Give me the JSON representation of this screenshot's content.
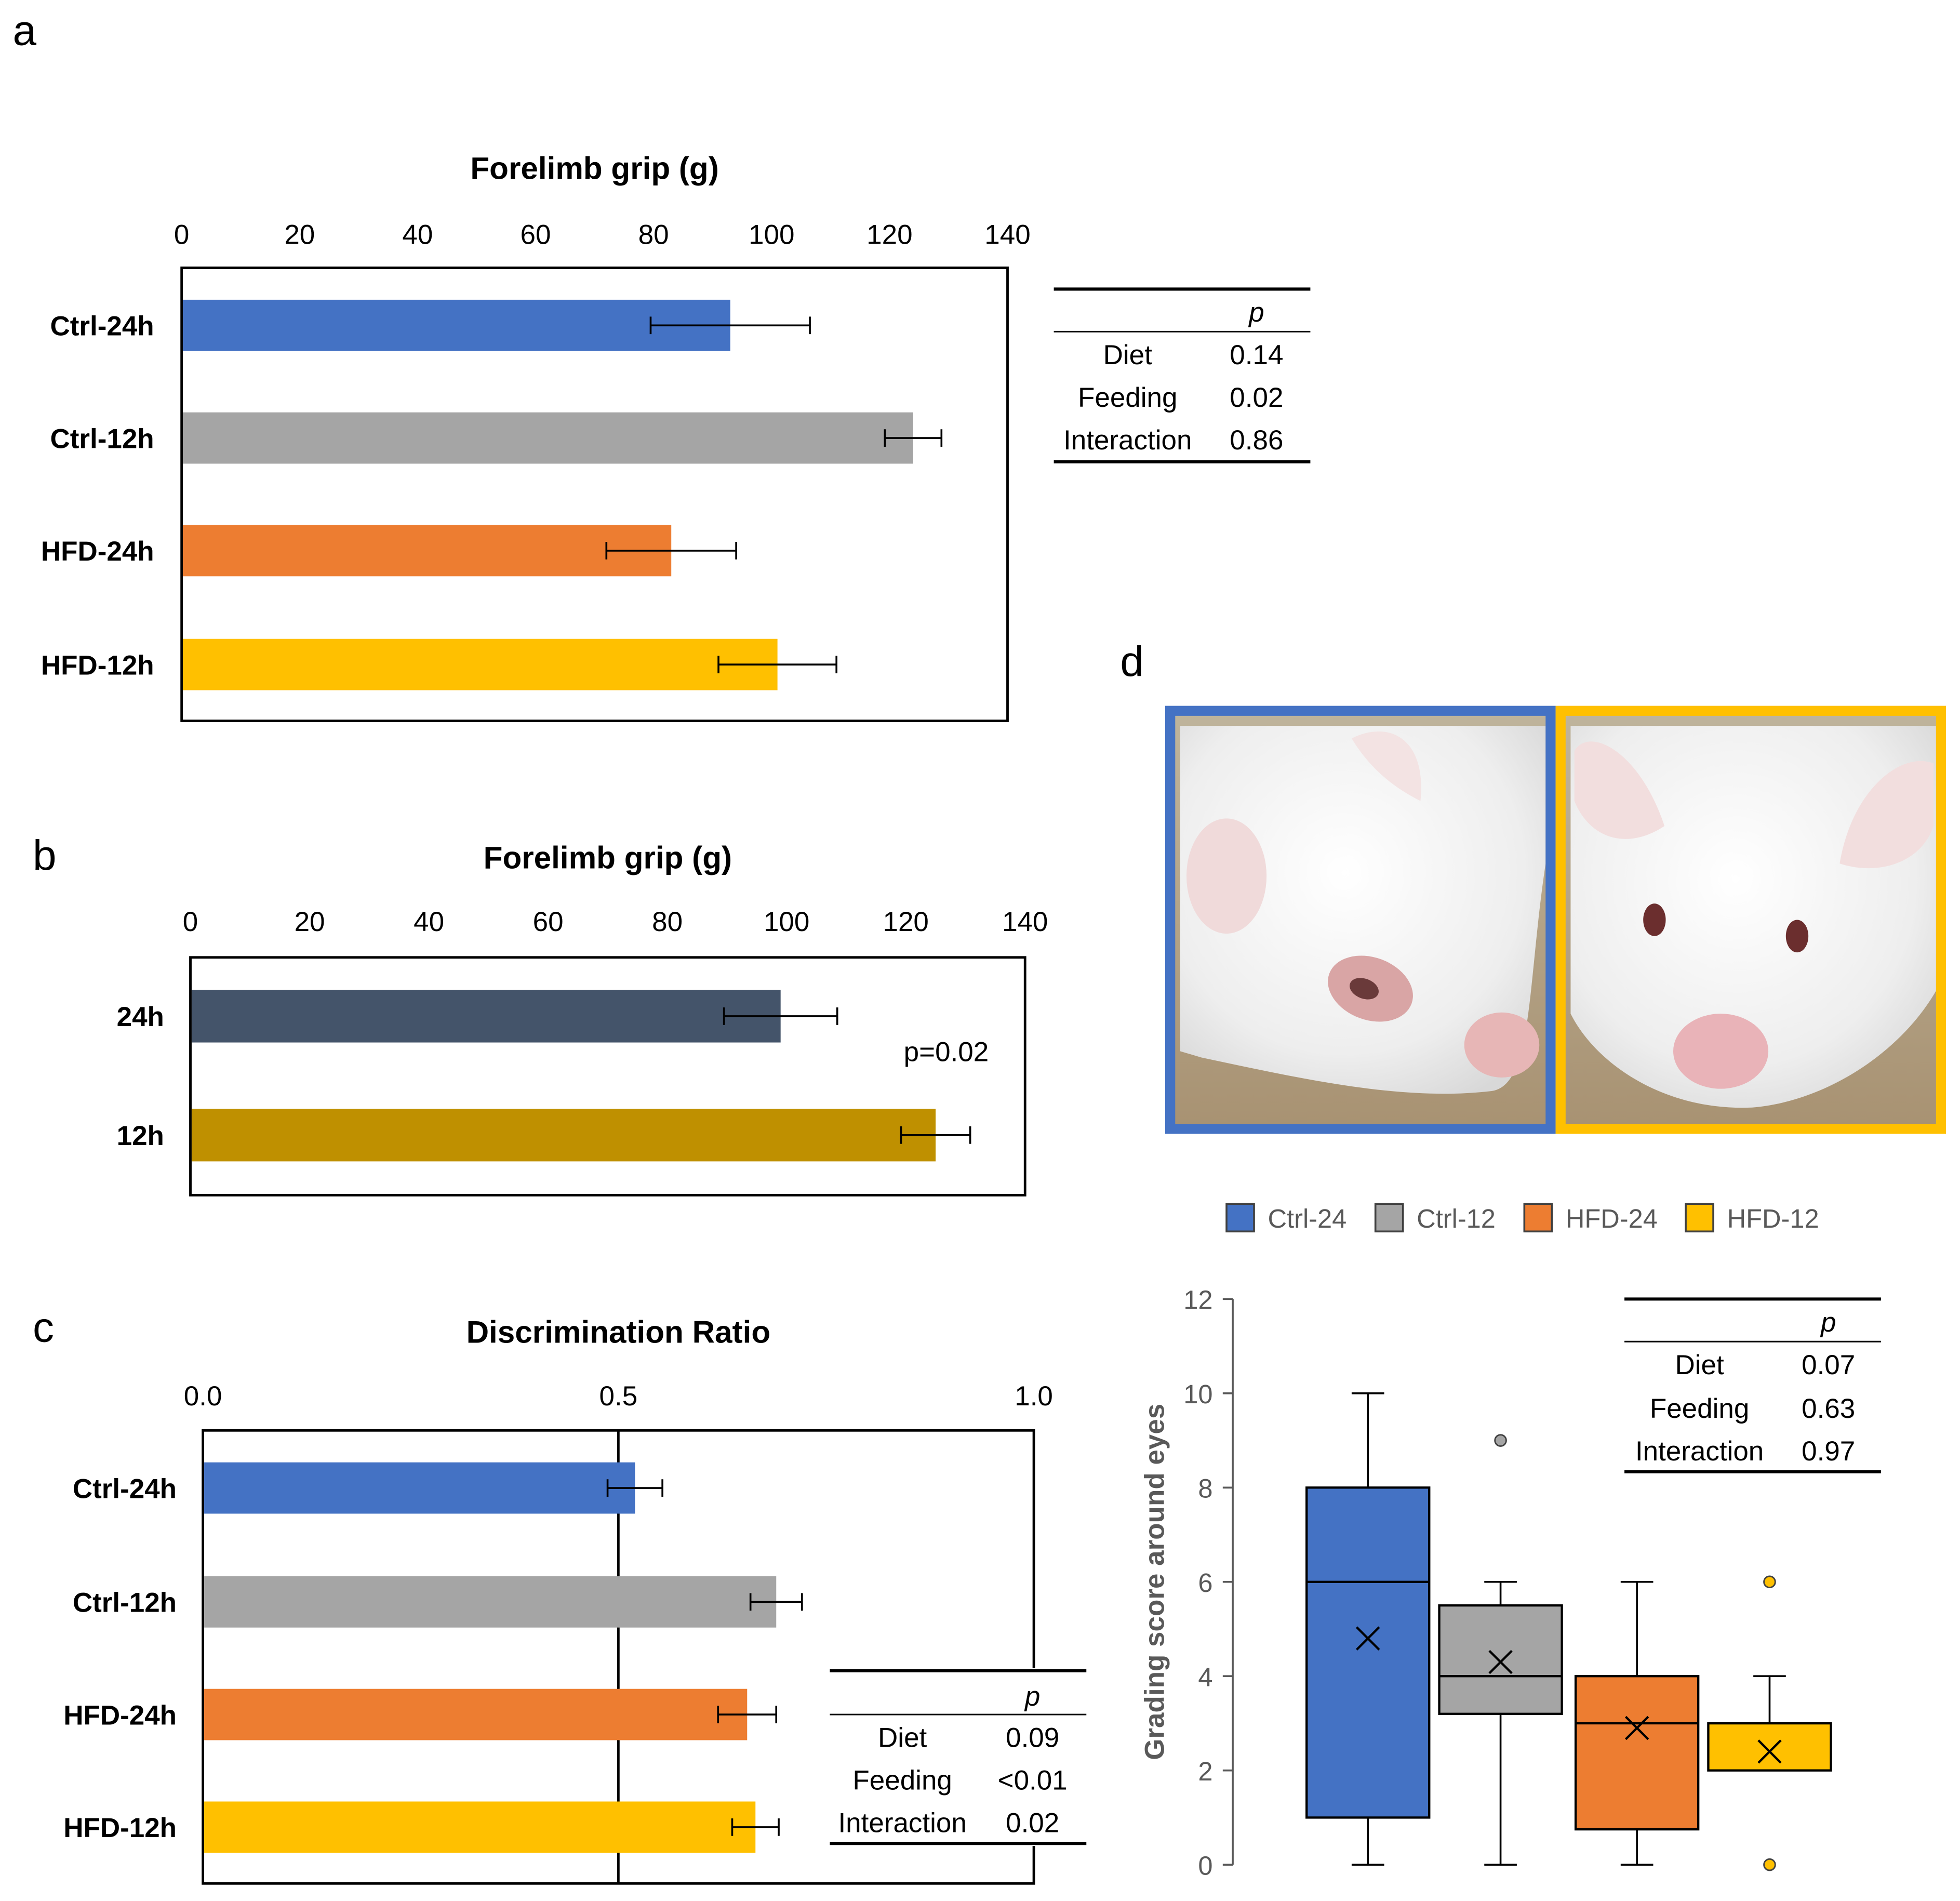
{
  "colors": {
    "ctrl24": "#4472C4",
    "ctrl12": "#A5A5A5",
    "hfd24": "#ED7D31",
    "hfd12": "#FFC000",
    "h24": "#44546A",
    "h12": "#BF9000"
  },
  "panel_labels": {
    "a": "a",
    "b": "b",
    "c": "c",
    "d": "d"
  },
  "chart_data": [
    {
      "id": "a",
      "type": "bar",
      "orientation": "horizontal",
      "title": "Forelimb grip (g)",
      "xlim": [
        0,
        140
      ],
      "ticks": [
        0,
        20,
        40,
        60,
        80,
        100,
        120,
        140
      ],
      "tick_labels": [
        "0",
        "20",
        "40",
        "60",
        "80",
        "100",
        "120",
        "140"
      ],
      "categories": [
        "Ctrl-24h",
        "Ctrl-12h",
        "HFD-24h",
        "HFD-12h"
      ],
      "values": [
        93,
        124,
        83,
        101
      ],
      "errors": [
        13.5,
        4.8,
        11,
        10
      ],
      "color_keys": [
        "ctrl24",
        "ctrl12",
        "hfd24",
        "hfd12"
      ],
      "stats": {
        "header": "p",
        "rows": [
          [
            "Diet",
            "0.14"
          ],
          [
            "Feeding",
            "0.02"
          ],
          [
            "Interaction",
            "0.86"
          ]
        ]
      }
    },
    {
      "id": "b",
      "type": "bar",
      "orientation": "horizontal",
      "title": "Forelimb grip (g)",
      "xlim": [
        0,
        140
      ],
      "ticks": [
        0,
        20,
        40,
        60,
        80,
        100,
        120,
        140
      ],
      "tick_labels": [
        "0",
        "20",
        "40",
        "60",
        "80",
        "100",
        "120",
        "140"
      ],
      "categories": [
        "24h",
        "12h"
      ],
      "values": [
        99,
        125
      ],
      "errors": [
        9.5,
        5.8
      ],
      "color_keys": [
        "h24",
        "h12"
      ],
      "annotation": "p=0.02"
    },
    {
      "id": "c",
      "type": "bar",
      "orientation": "horizontal",
      "title": "Discrimination Ratio",
      "xlim": [
        0,
        1
      ],
      "ticks": [
        0,
        0.5,
        1
      ],
      "tick_labels": [
        "0.0",
        "0.5",
        "1.0"
      ],
      "reference_line": 0.5,
      "categories": [
        "Ctrl-24h",
        "Ctrl-12h",
        "HFD-24h",
        "HFD-12h"
      ],
      "values": [
        0.52,
        0.69,
        0.655,
        0.665
      ],
      "errors": [
        0.033,
        0.031,
        0.035,
        0.028
      ],
      "color_keys": [
        "ctrl24",
        "ctrl12",
        "hfd24",
        "hfd12"
      ],
      "stats": {
        "header": "p",
        "rows": [
          [
            "Diet",
            "0.09"
          ],
          [
            "Feeding",
            "<0.01"
          ],
          [
            "Interaction",
            "0.02"
          ]
        ]
      }
    },
    {
      "id": "d",
      "type": "box",
      "ylabel": "Grading score around eyes",
      "ylim": [
        0,
        12
      ],
      "ticks": [
        0,
        2,
        4,
        6,
        8,
        10,
        12
      ],
      "tick_labels": [
        "0",
        "2",
        "4",
        "6",
        "8",
        "10",
        "12"
      ],
      "legend": [
        "Ctrl-24",
        "Ctrl-12",
        "HFD-24",
        "HFD-12"
      ],
      "color_keys": [
        "ctrl24",
        "ctrl12",
        "hfd24",
        "hfd12"
      ],
      "boxes": [
        {
          "name": "Ctrl-24",
          "min": 0,
          "q1": 1,
          "median": 6,
          "q3": 8,
          "max": 10,
          "mean": 4.8,
          "outliers": []
        },
        {
          "name": "Ctrl-12",
          "min": 0,
          "q1": 3.2,
          "median": 4,
          "q3": 5.5,
          "max": 6,
          "mean": 4.3,
          "outliers": [
            9
          ]
        },
        {
          "name": "HFD-24",
          "min": 0,
          "q1": 0.75,
          "median": 3,
          "q3": 4,
          "max": 6,
          "mean": 2.9,
          "outliers": []
        },
        {
          "name": "HFD-12",
          "min": 2,
          "q1": 2,
          "median": 3,
          "q3": 3,
          "max": 4,
          "mean": 2.4,
          "outliers": [
            6,
            0
          ]
        }
      ],
      "stats": {
        "header": "p",
        "rows": [
          [
            "Diet",
            "0.07"
          ],
          [
            "Feeding",
            "0.63"
          ],
          [
            "Interaction",
            "0.97"
          ]
        ]
      }
    }
  ]
}
